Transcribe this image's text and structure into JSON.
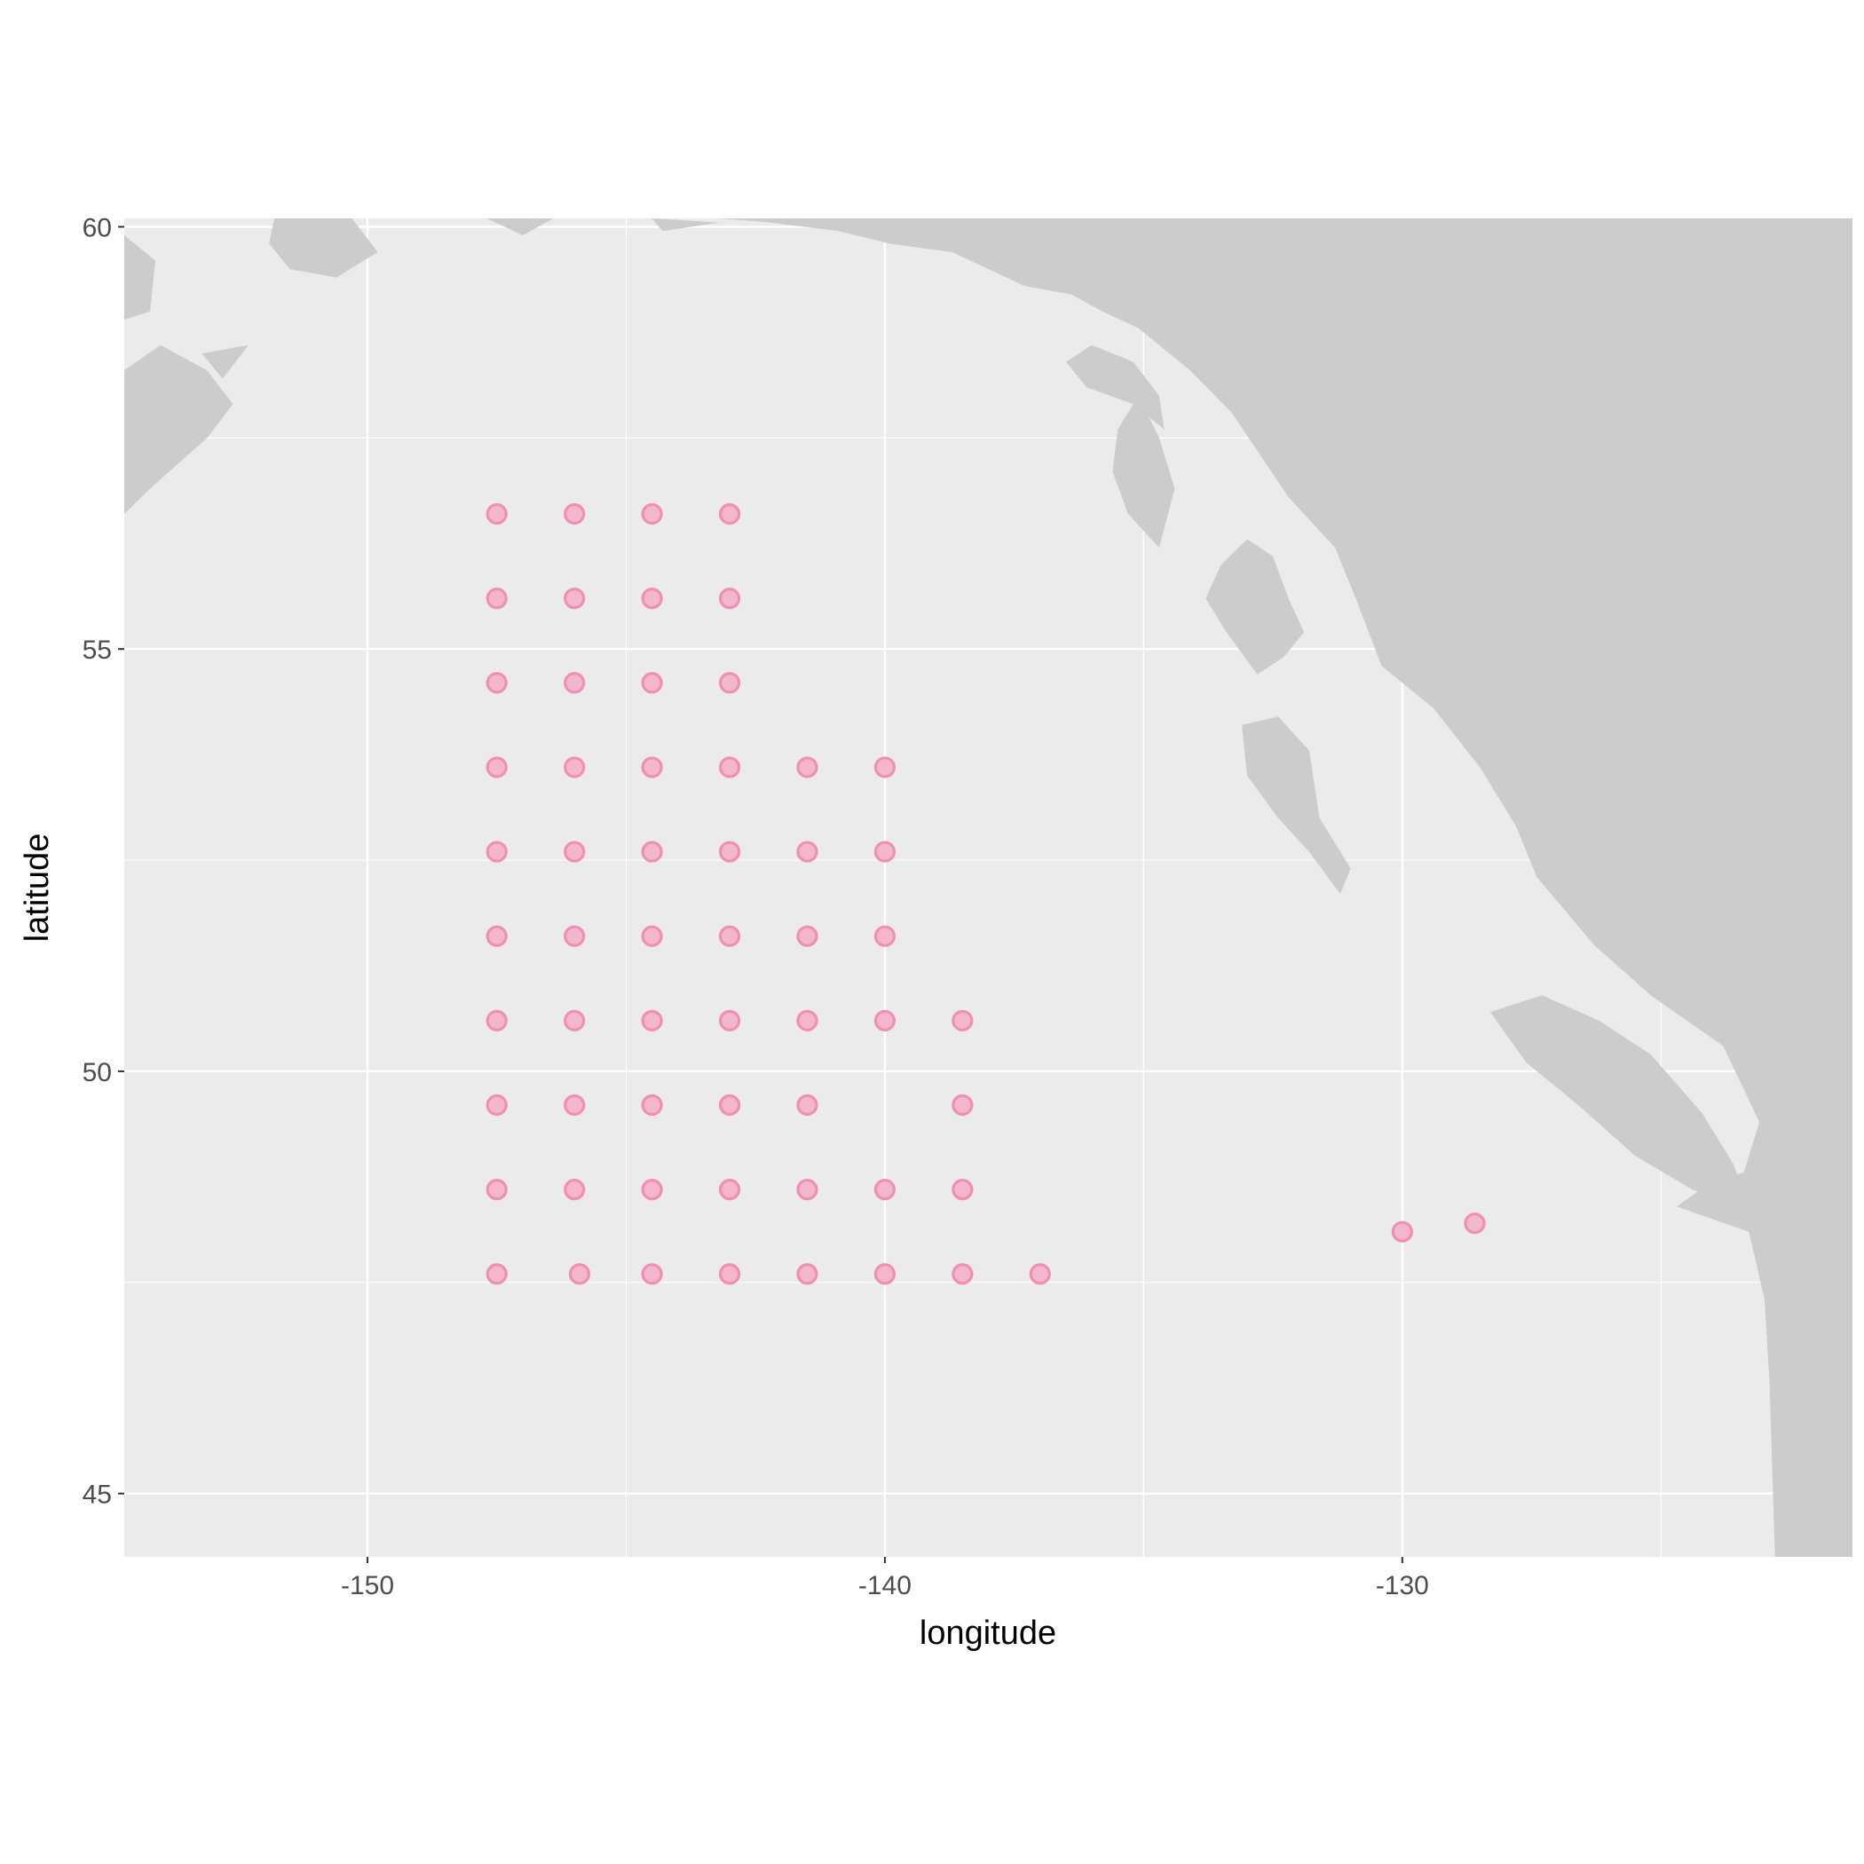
{
  "chart_data": {
    "type": "scatter",
    "title": "",
    "xlabel": "longitude",
    "ylabel": "latitude",
    "xlim": [
      -154.7,
      -121.3
    ],
    "ylim": [
      44.25,
      60.1
    ],
    "x_ticks": [
      -150,
      -140,
      -130
    ],
    "x_tick_labels": [
      "-150",
      "-140",
      "-130"
    ],
    "y_ticks": [
      45,
      50,
      55,
      60
    ],
    "y_tick_labels": [
      "45",
      "50",
      "55",
      "60"
    ],
    "x_minor": [
      -145,
      -135,
      -125
    ],
    "y_minor": [
      47.5,
      52.5,
      57.5
    ],
    "grid": true,
    "legend": "none",
    "colors": {
      "panel": "#ebebeb",
      "grid": "#ffffff",
      "land": "#cccccc",
      "point_fill": "#f4b6cc",
      "point_stroke": "#f08fb4"
    },
    "series": [
      {
        "points": [
          [
            -147.5,
            56.6
          ],
          [
            -146.0,
            56.6
          ],
          [
            -144.5,
            56.6
          ],
          [
            -143.0,
            56.6
          ],
          [
            -147.5,
            55.6
          ],
          [
            -146.0,
            55.6
          ],
          [
            -144.5,
            55.6
          ],
          [
            -143.0,
            55.6
          ],
          [
            -147.5,
            54.6
          ],
          [
            -146.0,
            54.6
          ],
          [
            -144.5,
            54.6
          ],
          [
            -143.0,
            54.6
          ],
          [
            -147.5,
            53.6
          ],
          [
            -146.0,
            53.6
          ],
          [
            -144.5,
            53.6
          ],
          [
            -143.0,
            53.6
          ],
          [
            -141.5,
            53.6
          ],
          [
            -140.0,
            53.6
          ],
          [
            -147.5,
            52.6
          ],
          [
            -146.0,
            52.6
          ],
          [
            -144.5,
            52.6
          ],
          [
            -143.0,
            52.6
          ],
          [
            -141.5,
            52.6
          ],
          [
            -140.0,
            52.6
          ],
          [
            -147.5,
            51.6
          ],
          [
            -146.0,
            51.6
          ],
          [
            -144.5,
            51.6
          ],
          [
            -143.0,
            51.6
          ],
          [
            -141.5,
            51.6
          ],
          [
            -140.0,
            51.6
          ],
          [
            -147.5,
            50.6
          ],
          [
            -146.0,
            50.6
          ],
          [
            -144.5,
            50.6
          ],
          [
            -143.0,
            50.6
          ],
          [
            -141.5,
            50.6
          ],
          [
            -140.0,
            50.6
          ],
          [
            -138.5,
            50.6
          ],
          [
            -147.5,
            49.6
          ],
          [
            -146.0,
            49.6
          ],
          [
            -144.5,
            49.6
          ],
          [
            -143.0,
            49.6
          ],
          [
            -141.5,
            49.6
          ],
          [
            -138.5,
            49.6
          ],
          [
            -147.5,
            48.6
          ],
          [
            -146.0,
            48.6
          ],
          [
            -144.5,
            48.6
          ],
          [
            -143.0,
            48.6
          ],
          [
            -141.5,
            48.6
          ],
          [
            -140.0,
            48.6
          ],
          [
            -138.5,
            48.6
          ],
          [
            -147.5,
            47.6
          ],
          [
            -145.9,
            47.6
          ],
          [
            -144.5,
            47.6
          ],
          [
            -143.0,
            47.6
          ],
          [
            -141.5,
            47.6
          ],
          [
            -140.0,
            47.6
          ],
          [
            -138.5,
            47.6
          ],
          [
            -137.0,
            47.6
          ],
          [
            -130.0,
            48.1
          ],
          [
            -128.6,
            48.2
          ]
        ]
      }
    ],
    "land_polygons": [
      [
        [
          -133.3,
          60.1
        ],
        [
          -121.3,
          60.1
        ],
        [
          -121.3,
          44.25
        ],
        [
          -122.8,
          44.25
        ],
        [
          -122.9,
          46.3
        ],
        [
          -123.0,
          47.3
        ],
        [
          -123.3,
          48.1
        ],
        [
          -124.7,
          48.4
        ],
        [
          -124.0,
          48.7
        ],
        [
          -123.4,
          48.8
        ],
        [
          -123.1,
          49.4
        ],
        [
          -123.8,
          50.3
        ],
        [
          -125.2,
          50.9
        ],
        [
          -126.3,
          51.5
        ],
        [
          -127.4,
          52.3
        ],
        [
          -127.8,
          52.9
        ],
        [
          -128.5,
          53.6
        ],
        [
          -129.4,
          54.3
        ],
        [
          -130.4,
          54.8
        ],
        [
          -130.9,
          55.6
        ],
        [
          -131.3,
          56.2
        ],
        [
          -132.2,
          56.8
        ],
        [
          -133.3,
          57.8
        ],
        [
          -134.1,
          58.3
        ],
        [
          -135.1,
          58.8
        ],
        [
          -135.8,
          59.0
        ],
        [
          -136.4,
          59.2
        ],
        [
          -137.3,
          59.3
        ],
        [
          -138.7,
          59.7
        ],
        [
          -139.9,
          59.8
        ],
        [
          -140.9,
          59.95
        ],
        [
          -142.2,
          60.05
        ],
        [
          -143.2,
          60.1
        ]
      ],
      [
        [
          -123.3,
          48.4
        ],
        [
          -124.4,
          48.6
        ],
        [
          -125.5,
          49.0
        ],
        [
          -126.6,
          49.6
        ],
        [
          -127.6,
          50.1
        ],
        [
          -128.3,
          50.7
        ],
        [
          -127.3,
          50.9
        ],
        [
          -126.2,
          50.6
        ],
        [
          -125.2,
          50.2
        ],
        [
          -124.2,
          49.5
        ],
        [
          -123.6,
          48.9
        ]
      ],
      [
        [
          -131.2,
          52.1
        ],
        [
          -131.8,
          52.6
        ],
        [
          -132.4,
          53.0
        ],
        [
          -133.0,
          53.5
        ],
        [
          -133.1,
          54.1
        ],
        [
          -132.4,
          54.2
        ],
        [
          -131.8,
          53.8
        ],
        [
          -131.6,
          53.0
        ],
        [
          -131.0,
          52.4
        ]
      ],
      [
        [
          -132.8,
          54.7
        ],
        [
          -133.4,
          55.2
        ],
        [
          -133.8,
          55.6
        ],
        [
          -133.5,
          56.0
        ],
        [
          -133.0,
          56.3
        ],
        [
          -132.5,
          56.1
        ],
        [
          -132.2,
          55.6
        ],
        [
          -131.9,
          55.2
        ],
        [
          -132.3,
          54.9
        ]
      ],
      [
        [
          -134.7,
          56.2
        ],
        [
          -135.3,
          56.6
        ],
        [
          -135.6,
          57.1
        ],
        [
          -135.5,
          57.6
        ],
        [
          -135.1,
          58.0
        ],
        [
          -134.7,
          57.5
        ],
        [
          -134.4,
          56.9
        ]
      ],
      [
        [
          -134.6,
          57.6
        ],
        [
          -135.2,
          57.9
        ],
        [
          -136.1,
          58.1
        ],
        [
          -136.5,
          58.4
        ],
        [
          -136.0,
          58.6
        ],
        [
          -135.2,
          58.4
        ],
        [
          -134.7,
          58.0
        ]
      ],
      [
        [
          -151.8,
          60.1
        ],
        [
          -150.3,
          60.1
        ],
        [
          -149.8,
          59.7
        ],
        [
          -150.6,
          59.4
        ],
        [
          -151.5,
          59.5
        ],
        [
          -151.9,
          59.8
        ]
      ],
      [
        [
          -154.7,
          58.3
        ],
        [
          -154.0,
          58.6
        ],
        [
          -153.1,
          58.3
        ],
        [
          -152.6,
          57.9
        ],
        [
          -153.1,
          57.5
        ],
        [
          -154.2,
          56.9
        ],
        [
          -154.7,
          56.6
        ]
      ],
      [
        [
          -154.7,
          59.9
        ],
        [
          -154.1,
          59.6
        ],
        [
          -154.2,
          59.0
        ],
        [
          -154.7,
          58.9
        ]
      ],
      [
        [
          -153.2,
          58.5
        ],
        [
          -152.3,
          58.6
        ],
        [
          -152.8,
          58.2
        ]
      ],
      [
        [
          -147.7,
          60.1
        ],
        [
          -146.4,
          60.1
        ],
        [
          -147.0,
          59.9
        ]
      ],
      [
        [
          -144.5,
          60.1
        ],
        [
          -143.2,
          60.05
        ],
        [
          -144.3,
          59.95
        ]
      ]
    ]
  }
}
